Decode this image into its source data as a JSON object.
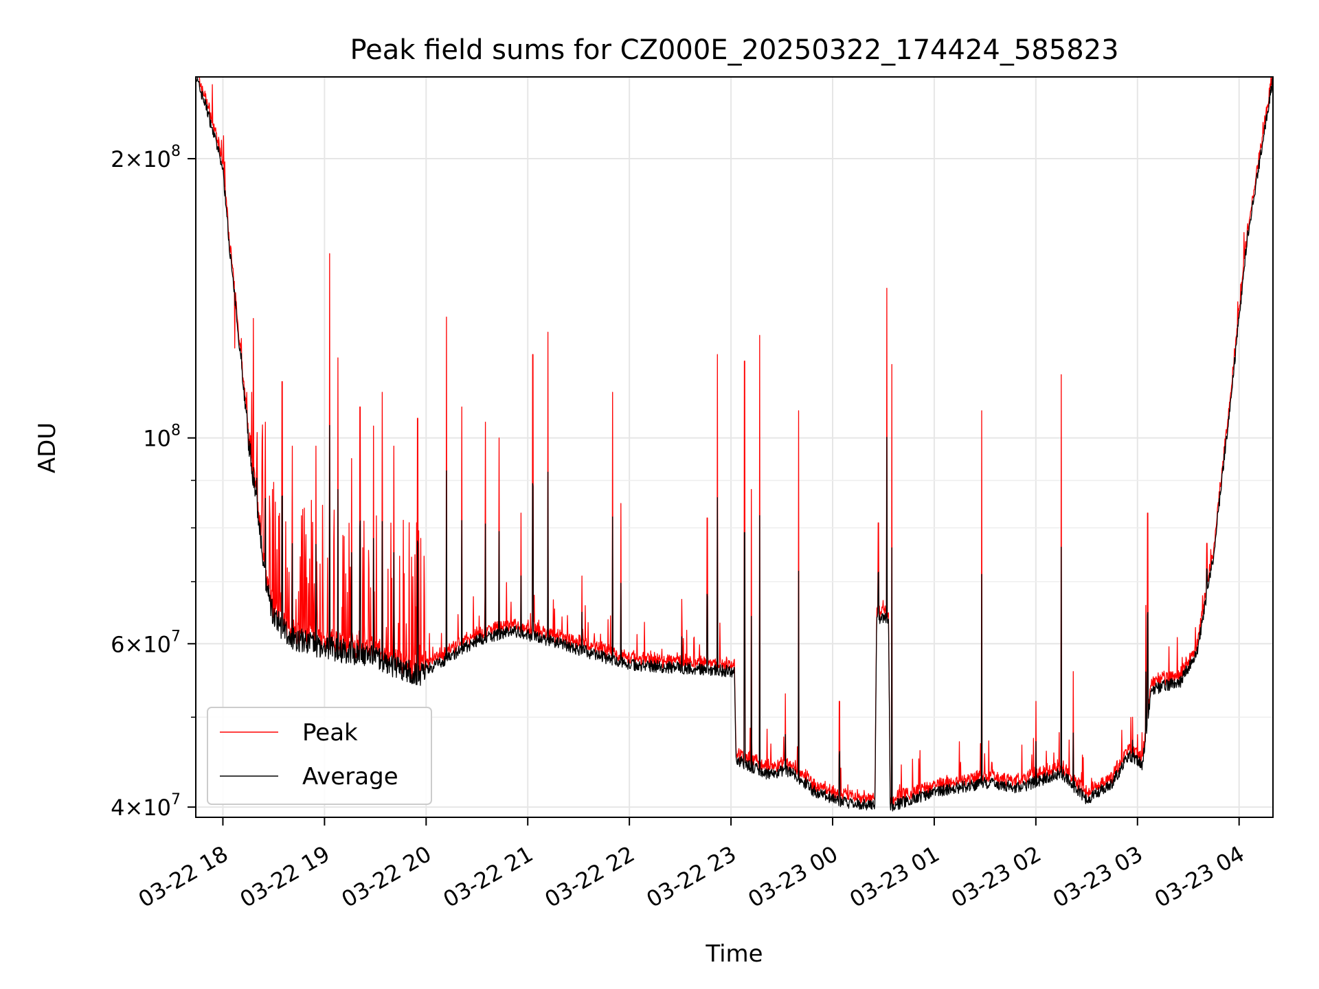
{
  "chart_data": {
    "type": "line",
    "title": "Peak field sums for CZ000E_20250322_174424_585823",
    "xlabel": "Time",
    "ylabel": "ADU",
    "yscale": "log",
    "ylim": [
      39000000,
      245000000
    ],
    "xlim": [
      "2025-03-22 17:44",
      "2025-03-23 04:20"
    ],
    "grid": true,
    "legend_position": "lower-left",
    "x_ticks": [
      {
        "t": "2025-03-22 18:00",
        "label": "03-22 18"
      },
      {
        "t": "2025-03-22 19:00",
        "label": "03-22 19"
      },
      {
        "t": "2025-03-22 20:00",
        "label": "03-22 20"
      },
      {
        "t": "2025-03-22 21:00",
        "label": "03-22 21"
      },
      {
        "t": "2025-03-22 22:00",
        "label": "03-22 22"
      },
      {
        "t": "2025-03-22 23:00",
        "label": "03-22 23"
      },
      {
        "t": "2025-03-23 00:00",
        "label": "03-23 00"
      },
      {
        "t": "2025-03-23 01:00",
        "label": "03-23 01"
      },
      {
        "t": "2025-03-23 02:00",
        "label": "03-23 02"
      },
      {
        "t": "2025-03-23 03:00",
        "label": "03-23 03"
      },
      {
        "t": "2025-03-23 04:00",
        "label": "03-23 04"
      }
    ],
    "y_ticks": [
      {
        "value": 40000000,
        "mant": "4",
        "exp": "7"
      },
      {
        "value": 60000000,
        "mant": "6",
        "exp": "7"
      },
      {
        "value": 100000000,
        "mant": "",
        "exp": "8"
      },
      {
        "value": 200000000,
        "mant": "2",
        "exp": "8"
      }
    ],
    "y_minor_ticks": [
      50000000,
      70000000,
      80000000,
      90000000
    ],
    "series": [
      {
        "name": "Peak",
        "color": "#ff0000"
      },
      {
        "name": "Average",
        "color": "#000000"
      }
    ],
    "average_baseline": [
      [
        "2025-03-22 17:44",
        245000000
      ],
      [
        "2025-03-22 17:51",
        225000000
      ],
      [
        "2025-03-22 18:00",
        195000000
      ],
      [
        "2025-03-22 18:04",
        160000000
      ],
      [
        "2025-03-22 18:10",
        125000000
      ],
      [
        "2025-03-22 18:15",
        100000000
      ],
      [
        "2025-03-22 18:20",
        85000000
      ],
      [
        "2025-03-22 18:25",
        70000000
      ],
      [
        "2025-03-22 18:30",
        64000000
      ],
      [
        "2025-03-22 18:40",
        61000000
      ],
      [
        "2025-03-22 19:00",
        59500000
      ],
      [
        "2025-03-22 19:30",
        58000000
      ],
      [
        "2025-03-22 19:55",
        55500000
      ],
      [
        "2025-03-22 20:10",
        57500000
      ],
      [
        "2025-03-22 20:30",
        60500000
      ],
      [
        "2025-03-22 20:50",
        62000000
      ],
      [
        "2025-03-22 21:20",
        60000000
      ],
      [
        "2025-03-22 21:45",
        58000000
      ],
      [
        "2025-03-22 22:00",
        57000000
      ],
      [
        "2025-03-22 22:30",
        56500000
      ],
      [
        "2025-03-22 23:02",
        56000000
      ],
      [
        "2025-03-22 23:03",
        45000000
      ],
      [
        "2025-03-22 23:20",
        43500000
      ],
      [
        "2025-03-22 23:35",
        43800000
      ],
      [
        "2025-03-22 23:50",
        41500000
      ],
      [
        "2025-03-23 00:10",
        40300000
      ],
      [
        "2025-03-23 00:25",
        40200000
      ],
      [
        "2025-03-23 00:26",
        64000000
      ],
      [
        "2025-03-23 00:33",
        64000000
      ],
      [
        "2025-03-23 00:34",
        40100000
      ],
      [
        "2025-03-23 01:00",
        41500000
      ],
      [
        "2025-03-23 01:30",
        42500000
      ],
      [
        "2025-03-23 01:50",
        42000000
      ],
      [
        "2025-03-23 02:15",
        43500000
      ],
      [
        "2025-03-23 02:30",
        40800000
      ],
      [
        "2025-03-23 02:45",
        42500000
      ],
      [
        "2025-03-23 02:55",
        45500000
      ],
      [
        "2025-03-23 03:03",
        44500000
      ],
      [
        "2025-03-23 03:08",
        53500000
      ],
      [
        "2025-03-23 03:15",
        54000000
      ],
      [
        "2025-03-23 03:25",
        54500000
      ],
      [
        "2025-03-23 03:35",
        58500000
      ],
      [
        "2025-03-23 03:45",
        75000000
      ],
      [
        "2025-03-23 03:55",
        110000000
      ],
      [
        "2025-03-23 04:05",
        165000000
      ],
      [
        "2025-03-23 04:20",
        245000000
      ]
    ],
    "peak_spikes": [
      [
        "2025-03-22 18:07",
        125000000
      ],
      [
        "2025-03-22 18:11",
        128000000
      ],
      [
        "2025-03-22 18:14",
        112000000
      ],
      [
        "2025-03-22 18:20",
        95000000
      ],
      [
        "2025-03-22 18:25",
        104000000
      ],
      [
        "2025-03-22 18:35",
        115000000
      ],
      [
        "2025-03-22 18:41",
        98000000
      ],
      [
        "2025-03-22 18:55",
        98000000
      ],
      [
        "2025-03-22 19:03",
        158000000
      ],
      [
        "2025-03-22 19:08",
        122000000
      ],
      [
        "2025-03-22 19:16",
        95000000
      ],
      [
        "2025-03-22 19:21",
        108000000
      ],
      [
        "2025-03-22 19:29",
        103000000
      ],
      [
        "2025-03-22 19:34",
        112000000
      ],
      [
        "2025-03-22 19:41",
        98000000
      ],
      [
        "2025-03-22 19:55",
        105000000
      ],
      [
        "2025-03-22 20:12",
        135000000
      ],
      [
        "2025-03-22 20:21",
        108000000
      ],
      [
        "2025-03-22 20:35",
        104000000
      ],
      [
        "2025-03-22 20:43",
        100000000
      ],
      [
        "2025-03-22 20:56",
        83000000
      ],
      [
        "2025-03-22 21:03",
        123000000
      ],
      [
        "2025-03-22 21:12",
        130000000
      ],
      [
        "2025-03-22 21:32",
        71000000
      ],
      [
        "2025-03-22 21:50",
        112000000
      ],
      [
        "2025-03-22 21:55",
        85000000
      ],
      [
        "2025-03-22 22:31",
        67000000
      ],
      [
        "2025-03-22 22:46",
        82000000
      ],
      [
        "2025-03-22 22:52",
        123000000
      ],
      [
        "2025-03-22 23:08",
        121000000
      ],
      [
        "2025-03-22 23:12",
        88000000
      ],
      [
        "2025-03-22 23:17",
        129000000
      ],
      [
        "2025-03-22 23:32",
        53000000
      ],
      [
        "2025-03-22 23:40",
        107000000
      ],
      [
        "2025-03-23 00:04",
        52000000
      ],
      [
        "2025-03-23 00:27",
        81000000
      ],
      [
        "2025-03-23 00:32",
        145000000
      ],
      [
        "2025-03-23 00:35",
        120000000
      ],
      [
        "2025-03-23 01:28",
        107000000
      ],
      [
        "2025-03-23 02:00",
        52000000
      ],
      [
        "2025-03-23 02:15",
        117000000
      ],
      [
        "2025-03-23 02:22",
        56000000
      ],
      [
        "2025-03-23 02:57",
        50000000
      ],
      [
        "2025-03-23 03:05",
        66000000
      ],
      [
        "2025-03-23 03:06",
        83000000
      ],
      [
        "2025-03-23 03:41",
        77000000
      ]
    ]
  }
}
